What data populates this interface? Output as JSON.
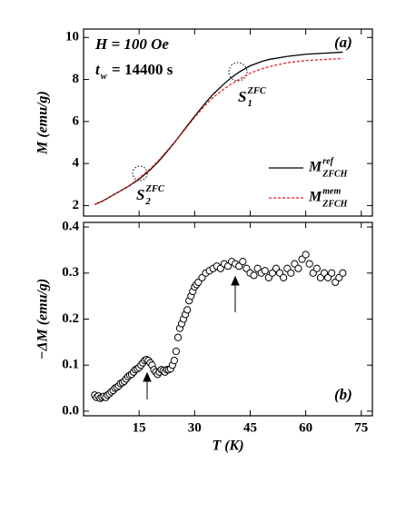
{
  "chart_data": [
    {
      "type": "line",
      "ylabel": "M (emu/g)",
      "x": [
        3,
        5,
        8,
        10,
        12,
        15,
        18,
        20,
        22,
        25,
        28,
        30,
        33,
        35,
        38,
        40,
        42,
        45,
        48,
        50,
        55,
        60,
        65,
        70
      ],
      "series": [
        {
          "name": "M",
          "name_sup": "ref",
          "name_sub": "ZFCH",
          "color": "#000000",
          "dash": false,
          "values": [
            2.05,
            2.2,
            2.5,
            2.7,
            2.9,
            3.25,
            3.7,
            4.05,
            4.45,
            5.1,
            5.8,
            6.25,
            6.9,
            7.3,
            7.8,
            8.1,
            8.35,
            8.65,
            8.85,
            8.95,
            9.1,
            9.2,
            9.25,
            9.3
          ]
        },
        {
          "name": "M",
          "name_sup": "mem",
          "name_sub": "ZFCH",
          "color": "#e8201e",
          "dash": true,
          "values": [
            2.05,
            2.2,
            2.5,
            2.7,
            2.9,
            3.3,
            3.75,
            4.1,
            4.5,
            5.1,
            5.75,
            6.2,
            6.8,
            7.15,
            7.55,
            7.8,
            8.0,
            8.3,
            8.5,
            8.6,
            8.8,
            8.9,
            8.95,
            9.0
          ]
        }
      ],
      "xlim": [
        0,
        78
      ],
      "ylim": [
        1.5,
        10.4
      ],
      "yticks": [
        2,
        4,
        6,
        8,
        10
      ],
      "annotations": [
        {
          "text": "H = 100 Oe"
        },
        {
          "text": "t",
          "sub": "w",
          "after": " = 14400 s"
        },
        {
          "text": "(a)"
        },
        {
          "text": "S",
          "sub": "1",
          "sup": "ZFC"
        },
        {
          "text": "S",
          "sub": "2",
          "sup": "ZFC"
        }
      ]
    },
    {
      "type": "scatter",
      "xlabel": "T (K)",
      "ylabel": "−ΔM (emu/g)",
      "x": [
        3,
        3.5,
        4,
        4.5,
        5,
        5.5,
        6,
        6.5,
        7,
        7.5,
        8,
        8.5,
        9,
        9.5,
        10,
        10.5,
        11,
        11.5,
        12,
        12.5,
        13,
        13.5,
        14,
        14.5,
        15,
        15.5,
        16,
        16.5,
        17,
        17.5,
        18,
        18.5,
        19,
        19.5,
        20,
        20.5,
        21,
        21.5,
        22,
        22.5,
        23,
        23.5,
        24,
        24.5,
        25,
        25.5,
        26,
        26.5,
        27,
        27.5,
        28,
        28.5,
        29,
        29.5,
        30,
        30.5,
        31,
        32,
        33,
        34,
        35,
        36,
        37,
        38,
        39,
        40,
        41,
        42,
        43,
        44,
        45,
        46,
        47,
        48,
        49,
        50,
        51,
        52,
        53,
        54,
        55,
        56,
        57,
        58,
        59,
        60,
        61,
        62,
        63,
        64,
        65,
        66,
        67,
        68,
        69,
        70
      ],
      "values": [
        0.035,
        0.03,
        0.033,
        0.028,
        0.03,
        0.032,
        0.03,
        0.035,
        0.038,
        0.042,
        0.045,
        0.05,
        0.052,
        0.055,
        0.06,
        0.062,
        0.065,
        0.07,
        0.075,
        0.078,
        0.08,
        0.085,
        0.09,
        0.092,
        0.095,
        0.1,
        0.105,
        0.11,
        0.112,
        0.11,
        0.105,
        0.1,
        0.09,
        0.085,
        0.08,
        0.085,
        0.09,
        0.088,
        0.085,
        0.09,
        0.09,
        0.092,
        0.1,
        0.11,
        0.13,
        0.16,
        0.18,
        0.19,
        0.2,
        0.21,
        0.22,
        0.24,
        0.25,
        0.26,
        0.27,
        0.275,
        0.28,
        0.29,
        0.3,
        0.305,
        0.31,
        0.315,
        0.31,
        0.32,
        0.315,
        0.325,
        0.32,
        0.315,
        0.325,
        0.31,
        0.3,
        0.295,
        0.31,
        0.3,
        0.305,
        0.29,
        0.3,
        0.31,
        0.3,
        0.29,
        0.31,
        0.3,
        0.32,
        0.31,
        0.33,
        0.34,
        0.32,
        0.3,
        0.31,
        0.29,
        0.3,
        0.29,
        0.3,
        0.28,
        0.29,
        0.3
      ],
      "xlim": [
        0,
        78
      ],
      "ylim": [
        -0.01,
        0.41
      ],
      "xticks": [
        15,
        30,
        45,
        60,
        75
      ],
      "yticks": [
        {
          "value": 0.0,
          "label": "0.0"
        },
        0.1,
        0.2,
        0.3,
        0.4
      ],
      "annotations": [
        {
          "text": "(b)"
        }
      ]
    }
  ]
}
